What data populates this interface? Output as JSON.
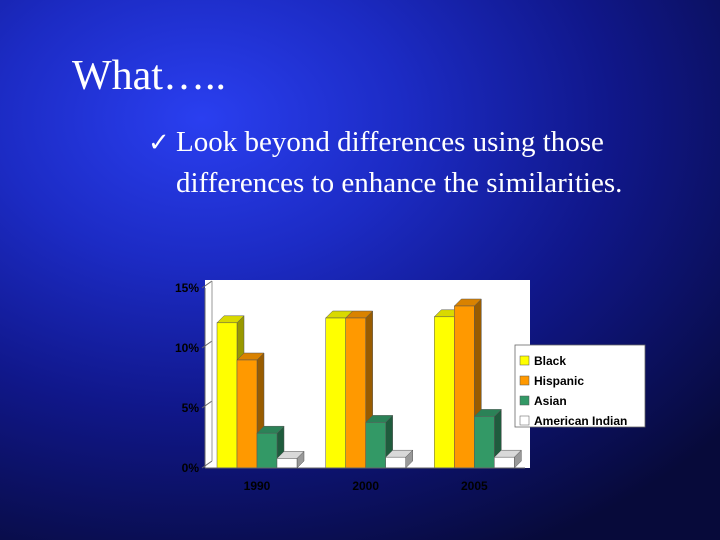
{
  "slide": {
    "title": "What…..",
    "bullet_check": "✓",
    "bullet_line1": "Look beyond differences  using those",
    "bullet_line2": "differences to enhance the similarities."
  },
  "colors": {
    "text": "#ffffff",
    "Black": "#ffff00",
    "Hispanic": "#ff9900",
    "Asian": "#339966",
    "American Indian": "#ffffff"
  },
  "chart_data": {
    "type": "bar",
    "style": "3d-clustered",
    "categories": [
      "1990",
      "2000",
      "2005"
    ],
    "series": [
      {
        "name": "Black",
        "values": [
          12.1,
          12.5,
          12.6
        ]
      },
      {
        "name": "Hispanic",
        "values": [
          9.0,
          12.5,
          13.5
        ]
      },
      {
        "name": "Asian",
        "values": [
          2.9,
          3.8,
          4.3
        ]
      },
      {
        "name": "American Indian",
        "values": [
          0.8,
          0.9,
          0.9
        ]
      }
    ],
    "ylim": [
      0,
      15
    ],
    "yticks": [
      "0%",
      "5%",
      "10%",
      "15%"
    ],
    "grid": false,
    "legend": "right"
  }
}
